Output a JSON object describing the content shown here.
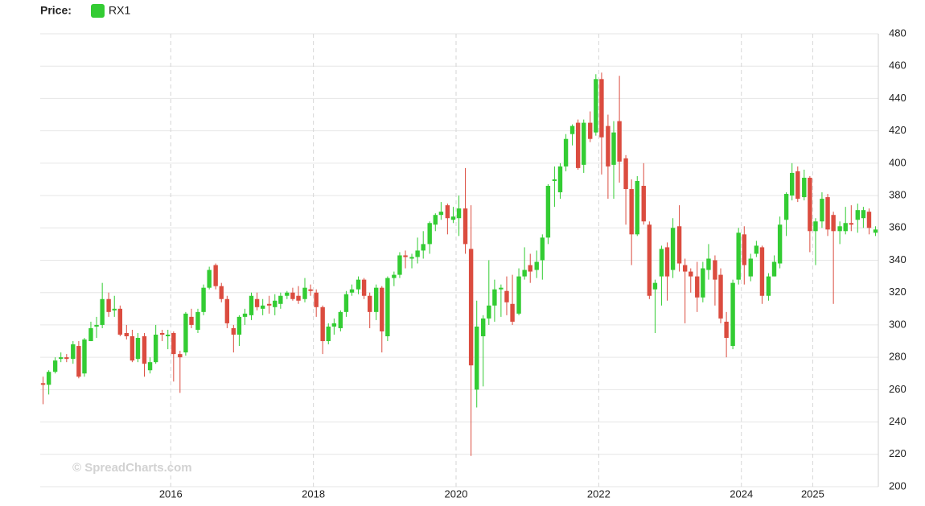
{
  "chart_data": {
    "type": "candlestick",
    "legend_title": "Price:",
    "watermark": "© SpreadCharts.com",
    "up_color": "#33cc33",
    "down_color": "#db4c3f",
    "grid": true,
    "xlim": [
      2014.17,
      2025.92
    ],
    "xticks": [
      2016,
      2018,
      2020,
      2022,
      2024,
      2025
    ],
    "ylim": [
      200,
      480
    ],
    "yticks": [
      200,
      220,
      240,
      260,
      280,
      300,
      320,
      340,
      360,
      380,
      400,
      420,
      440,
      460,
      480
    ],
    "x": [
      2014.21,
      2014.29,
      2014.38,
      2014.46,
      2014.54,
      2014.63,
      2014.71,
      2014.79,
      2014.88,
      2014.96,
      2015.04,
      2015.13,
      2015.21,
      2015.29,
      2015.38,
      2015.46,
      2015.54,
      2015.63,
      2015.71,
      2015.79,
      2015.88,
      2015.96,
      2016.04,
      2016.13,
      2016.21,
      2016.29,
      2016.38,
      2016.46,
      2016.54,
      2016.63,
      2016.71,
      2016.79,
      2016.88,
      2016.96,
      2017.04,
      2017.13,
      2017.21,
      2017.29,
      2017.38,
      2017.46,
      2017.54,
      2017.63,
      2017.71,
      2017.79,
      2017.88,
      2017.96,
      2018.04,
      2018.13,
      2018.21,
      2018.29,
      2018.38,
      2018.46,
      2018.54,
      2018.63,
      2018.71,
      2018.79,
      2018.88,
      2018.96,
      2019.04,
      2019.13,
      2019.21,
      2019.29,
      2019.38,
      2019.46,
      2019.54,
      2019.63,
      2019.71,
      2019.79,
      2019.88,
      2019.96,
      2020.04,
      2020.13,
      2020.21,
      2020.29,
      2020.38,
      2020.46,
      2020.54,
      2020.63,
      2020.71,
      2020.79,
      2020.88,
      2020.96,
      2021.04,
      2021.13,
      2021.21,
      2021.29,
      2021.38,
      2021.46,
      2021.54,
      2021.63,
      2021.71,
      2021.79,
      2021.88,
      2021.96,
      2022.04,
      2022.13,
      2022.21,
      2022.29,
      2022.38,
      2022.46,
      2022.54,
      2022.63,
      2022.71,
      2022.79,
      2022.88,
      2022.96,
      2023.04,
      2023.13,
      2023.21,
      2023.29,
      2023.38,
      2023.46,
      2023.54,
      2023.63,
      2023.71,
      2023.79,
      2023.88,
      2023.96,
      2024.04,
      2024.13,
      2024.21,
      2024.29,
      2024.38,
      2024.46,
      2024.54,
      2024.63,
      2024.71,
      2024.79,
      2024.88,
      2024.96,
      2025.04,
      2025.13,
      2025.21,
      2025.29,
      2025.38,
      2025.46,
      2025.54,
      2025.63,
      2025.71,
      2025.79,
      2025.88
    ],
    "series": [
      {
        "name": "RX1",
        "color": "#33cc33",
        "open": [
          264,
          263,
          271,
          279,
          280,
          279,
          287,
          270,
          290,
          299,
          300,
          316,
          309,
          310,
          295,
          293,
          279,
          293,
          272,
          277,
          295,
          293,
          295,
          282,
          283,
          305,
          297,
          308,
          323,
          337,
          324,
          316,
          298,
          294,
          305,
          306,
          316,
          310,
          313,
          311,
          313,
          318,
          320,
          318,
          316,
          322,
          320,
          311,
          290,
          299,
          298,
          308,
          320,
          322,
          328,
          318,
          308,
          323,
          293,
          329,
          331,
          343,
          341,
          342,
          346,
          350,
          362,
          368,
          374,
          365,
          366,
          372,
          347,
          260,
          293,
          304,
          312,
          322,
          321,
          313,
          307,
          330,
          337,
          334,
          340,
          354,
          389,
          382,
          398,
          418,
          425,
          399,
          425,
          419,
          452,
          423,
          399,
          426,
          403,
          384,
          356,
          386,
          362,
          322,
          330,
          348,
          334,
          361,
          337,
          333,
          330,
          317,
          334,
          340,
          331,
          302,
          287,
          328,
          356,
          330,
          344,
          348,
          318,
          330,
          338,
          365,
          380,
          395,
          379,
          391,
          358,
          364,
          379,
          368,
          358,
          358,
          363,
          365,
          366,
          370,
          357
        ],
        "high": [
          268,
          272,
          280,
          283,
          282,
          290,
          290,
          292,
          302,
          305,
          326,
          320,
          318,
          312,
          300,
          297,
          295,
          295,
          280,
          300,
          297,
          297,
          296,
          284,
          308,
          310,
          310,
          325,
          336,
          338,
          326,
          318,
          300,
          306,
          310,
          320,
          320,
          316,
          318,
          319,
          320,
          321,
          323,
          324,
          329,
          325,
          322,
          312,
          301,
          304,
          309,
          321,
          325,
          330,
          329,
          320,
          325,
          324,
          330,
          333,
          345,
          346,
          344,
          354,
          358,
          364,
          369,
          376,
          375,
          373,
          380,
          397,
          374,
          315,
          306,
          340,
          328,
          325,
          330,
          331,
          335,
          348,
          344,
          346,
          356,
          387,
          398,
          400,
          418,
          424,
          427,
          427,
          432,
          455,
          456,
          430,
          426,
          454,
          405,
          390,
          392,
          400,
          364,
          328,
          349,
          351,
          366,
          374,
          341,
          335,
          339,
          339,
          350,
          343,
          335,
          308,
          328,
          360,
          361,
          344,
          352,
          349,
          332,
          343,
          367,
          382,
          400,
          398,
          396,
          392,
          366,
          382,
          381,
          370,
          364,
          373,
          374,
          375,
          373,
          372,
          361
        ],
        "low": [
          251,
          257,
          270,
          277,
          277,
          276,
          267,
          268,
          290,
          292,
          298,
          305,
          305,
          293,
          291,
          277,
          277,
          268,
          270,
          276,
          290,
          285,
          265,
          258,
          281,
          298,
          295,
          306,
          322,
          322,
          314,
          298,
          283,
          287,
          300,
          303,
          309,
          306,
          307,
          306,
          310,
          316,
          315,
          313,
          314,
          318,
          305,
          282,
          288,
          294,
          296,
          305,
          318,
          319,
          316,
          298,
          303,
          283,
          290,
          324,
          329,
          335,
          335,
          338,
          341,
          344,
          358,
          365,
          356,
          363,
          355,
          344,
          219,
          249,
          262,
          300,
          302,
          305,
          306,
          300,
          306,
          328,
          326,
          329,
          328,
          350,
          373,
          378,
          395,
          411,
          396,
          394,
          413,
          417,
          393,
          378,
          378,
          388,
          362,
          337,
          355,
          362,
          316,
          295,
          312,
          315,
          329,
          333,
          301,
          320,
          308,
          314,
          328,
          312,
          301,
          280,
          285,
          325,
          325,
          327,
          342,
          313,
          315,
          330,
          335,
          355,
          377,
          376,
          377,
          345,
          337,
          360,
          355,
          313,
          350,
          356,
          358,
          357,
          360,
          356,
          355
        ],
        "close": [
          263,
          271,
          278,
          280,
          279,
          288,
          268,
          291,
          298,
          300,
          316,
          308,
          310,
          294,
          293,
          278,
          292,
          276,
          277,
          294,
          294,
          294,
          282,
          280,
          307,
          300,
          308,
          323,
          334,
          324,
          316,
          301,
          294,
          305,
          307,
          318,
          311,
          312,
          312,
          315,
          318,
          320,
          316,
          315,
          323,
          321,
          311,
          290,
          299,
          301,
          308,
          319,
          322,
          328,
          318,
          308,
          323,
          296,
          329,
          331,
          343,
          342,
          342,
          346,
          350,
          363,
          368,
          370,
          366,
          367,
          372,
          350,
          275,
          299,
          304,
          312,
          322,
          323,
          314,
          302,
          330,
          334,
          333,
          339,
          354,
          386,
          390,
          398,
          415,
          423,
          397,
          425,
          415,
          452,
          416,
          398,
          419,
          401,
          384,
          356,
          389,
          364,
          318,
          326,
          347,
          330,
          360,
          338,
          333,
          330,
          317,
          335,
          341,
          328,
          304,
          292,
          326,
          357,
          337,
          341,
          349,
          318,
          330,
          339,
          362,
          381,
          394,
          378,
          391,
          358,
          364,
          378,
          359,
          358,
          361,
          363,
          362,
          371,
          371,
          360,
          359
        ]
      }
    ]
  }
}
